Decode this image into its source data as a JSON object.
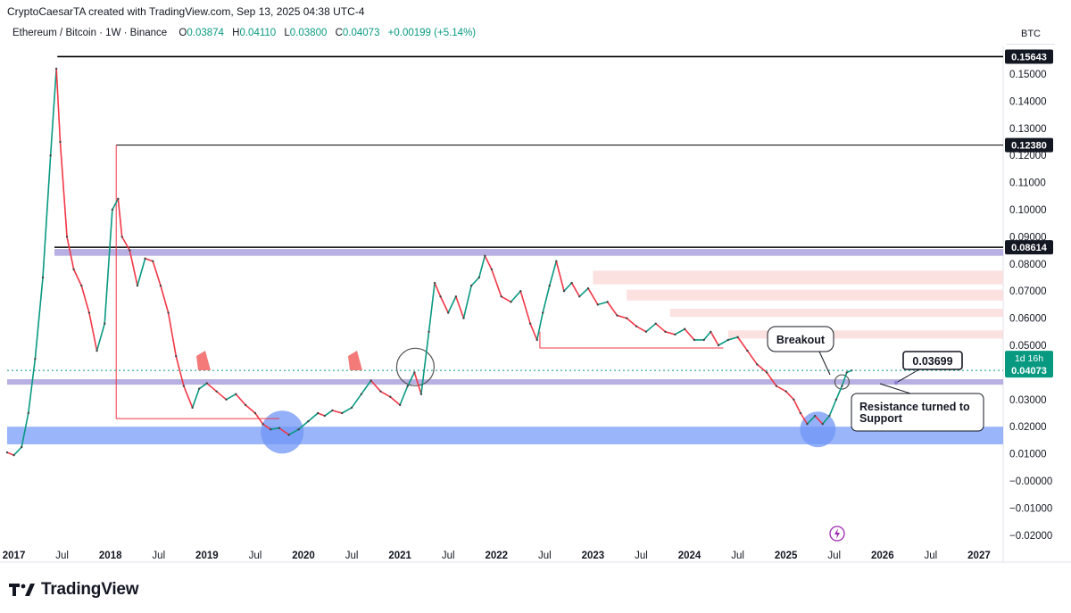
{
  "header": {
    "created_line": "CryptoCaesarTA created with TradingView.com, Sep 13, 2025 04:38 UTC-4",
    "symbol": "Ethereum / Bitcoin · 1W · Binance",
    "open_key": "O",
    "open": "0.03874",
    "high_key": "H",
    "high": "0.04110",
    "low_key": "L",
    "low": "0.03800",
    "close_key": "C",
    "close": "0.04073",
    "change": "+0.00199 (+5.14%)"
  },
  "currency": "BTC",
  "colors": {
    "up": "#089981",
    "down": "#f23645",
    "purple_band": "#9a8fd6",
    "blue_band": "#6f96f6",
    "red_zone": "#fbd9d9",
    "text": "#131722"
  },
  "chart_data": {
    "type": "line",
    "ylim": [
      -0.025,
      0.17
    ],
    "y_ticks": [
      "0.15000",
      "0.14000",
      "0.13000",
      "0.12000",
      "0.11000",
      "0.10000",
      "0.09000",
      "0.08000",
      "0.07000",
      "0.06000",
      "0.05000",
      "0.03000",
      "0.02000",
      "0.01000",
      "−0.00000",
      "−0.01000",
      "−0.02000"
    ],
    "y_tick_values": [
      0.15,
      0.14,
      0.13,
      0.12,
      0.11,
      0.1,
      0.09,
      0.08,
      0.07,
      0.06,
      0.05,
      0.03,
      0.02,
      0.01,
      0.0,
      -0.01,
      -0.02
    ],
    "x_ticks": [
      {
        "label": "2017",
        "t": 2017.0,
        "year": true
      },
      {
        "label": "Jul",
        "t": 2017.5,
        "year": false
      },
      {
        "label": "2018",
        "t": 2018.0,
        "year": true
      },
      {
        "label": "Jul",
        "t": 2018.5,
        "year": false
      },
      {
        "label": "2019",
        "t": 2019.0,
        "year": true
      },
      {
        "label": "Jul",
        "t": 2019.5,
        "year": false
      },
      {
        "label": "2020",
        "t": 2020.0,
        "year": true
      },
      {
        "label": "Jul",
        "t": 2020.5,
        "year": false
      },
      {
        "label": "2021",
        "t": 2021.0,
        "year": true
      },
      {
        "label": "Jul",
        "t": 2021.5,
        "year": false
      },
      {
        "label": "2022",
        "t": 2022.0,
        "year": true
      },
      {
        "label": "Jul",
        "t": 2022.5,
        "year": false
      },
      {
        "label": "2023",
        "t": 2023.0,
        "year": true
      },
      {
        "label": "Jul",
        "t": 2023.5,
        "year": false
      },
      {
        "label": "2024",
        "t": 2024.0,
        "year": true
      },
      {
        "label": "Jul",
        "t": 2024.5,
        "year": false
      },
      {
        "label": "2025",
        "t": 2025.0,
        "year": true
      },
      {
        "label": "Jul",
        "t": 2025.5,
        "year": false
      },
      {
        "label": "2026",
        "t": 2026.0,
        "year": true
      },
      {
        "label": "Jul",
        "t": 2026.5,
        "year": false
      },
      {
        "label": "2027",
        "t": 2027.0,
        "year": true
      }
    ],
    "series": [
      {
        "name": "",
        "t": [
          2016.93,
          2017.0,
          2017.08,
          2017.15,
          2017.22,
          2017.3,
          2017.38,
          2017.44,
          2017.48,
          2017.55,
          2017.62,
          2017.7,
          2017.78,
          2017.86,
          2017.94,
          2018.02,
          2018.08,
          2018.12,
          2018.2,
          2018.28,
          2018.36,
          2018.44,
          2018.52,
          2018.6,
          2018.68,
          2018.76,
          2018.85,
          2018.92,
          2019.0,
          2019.1,
          2019.2,
          2019.3,
          2019.4,
          2019.5,
          2019.58,
          2019.66,
          2019.75,
          2019.85,
          2019.95,
          2020.05,
          2020.15,
          2020.22,
          2020.3,
          2020.4,
          2020.5,
          2020.6,
          2020.7,
          2020.8,
          2020.9,
          2021.0,
          2021.08,
          2021.15,
          2021.22,
          2021.3,
          2021.36,
          2021.42,
          2021.5,
          2021.58,
          2021.66,
          2021.74,
          2021.82,
          2021.88,
          2021.95,
          2022.05,
          2022.15,
          2022.25,
          2022.35,
          2022.42,
          2022.48,
          2022.55,
          2022.62,
          2022.7,
          2022.78,
          2022.86,
          2022.95,
          2023.05,
          2023.15,
          2023.25,
          2023.35,
          2023.45,
          2023.55,
          2023.65,
          2023.75,
          2023.85,
          2023.95,
          2024.05,
          2024.15,
          2024.22,
          2024.3,
          2024.4,
          2024.5,
          2024.6,
          2024.7,
          2024.8,
          2024.9,
          2025.0,
          2025.08,
          2025.15,
          2025.22,
          2025.3,
          2025.38,
          2025.45,
          2025.52,
          2025.58,
          2025.63,
          2025.68
        ],
        "values": [
          0.0105,
          0.0095,
          0.0125,
          0.025,
          0.045,
          0.075,
          0.12,
          0.152,
          0.125,
          0.09,
          0.078,
          0.072,
          0.062,
          0.048,
          0.058,
          0.1,
          0.104,
          0.09,
          0.085,
          0.072,
          0.082,
          0.081,
          0.072,
          0.062,
          0.046,
          0.035,
          0.027,
          0.034,
          0.036,
          0.033,
          0.03,
          0.032,
          0.028,
          0.025,
          0.021,
          0.019,
          0.0195,
          0.017,
          0.019,
          0.022,
          0.025,
          0.024,
          0.026,
          0.025,
          0.027,
          0.032,
          0.037,
          0.033,
          0.031,
          0.028,
          0.035,
          0.04,
          0.032,
          0.055,
          0.073,
          0.068,
          0.062,
          0.068,
          0.06,
          0.072,
          0.075,
          0.083,
          0.078,
          0.068,
          0.066,
          0.07,
          0.058,
          0.052,
          0.062,
          0.072,
          0.081,
          0.07,
          0.073,
          0.068,
          0.071,
          0.065,
          0.066,
          0.061,
          0.06,
          0.057,
          0.055,
          0.058,
          0.055,
          0.054,
          0.056,
          0.052,
          0.052,
          0.055,
          0.05,
          0.052,
          0.053,
          0.048,
          0.043,
          0.04,
          0.035,
          0.033,
          0.03,
          0.025,
          0.021,
          0.024,
          0.021,
          0.024,
          0.03,
          0.035,
          0.04,
          0.04073
        ]
      }
    ],
    "levels": [
      {
        "value": 0.15643,
        "label": "0.15643",
        "from_t": 2017.45
      },
      {
        "value": 0.1238,
        "label": "0.12380",
        "from_t": 2018.06
      },
      {
        "value": 0.08614,
        "label": "0.08614",
        "from_t": 2017.42
      }
    ],
    "zones": [
      {
        "name": "purple-top",
        "y0": 0.083,
        "y1": 0.0855,
        "from_t": 2017.42
      },
      {
        "name": "purple-mid",
        "y0": 0.0355,
        "y1": 0.0375,
        "from_t": 2016.93
      },
      {
        "name": "blue-support",
        "y0": 0.0135,
        "y1": 0.02,
        "from_t": 2016.93
      }
    ],
    "red_zones": [
      {
        "y0": 0.0725,
        "y1": 0.0775,
        "from_t": 2023.0
      },
      {
        "y0": 0.0665,
        "y1": 0.0705,
        "from_t": 2023.35
      },
      {
        "y0": 0.0605,
        "y1": 0.0635,
        "from_t": 2023.8
      },
      {
        "y0": 0.0525,
        "y1": 0.0555,
        "from_t": 2024.4
      }
    ],
    "current_price": {
      "value": 0.04073,
      "label": "0.04073",
      "timer": "1d 16h"
    },
    "annotations": {
      "breakout": "Breakout",
      "target_value": "0.03699",
      "support": [
        "Resistance turned to",
        "Support"
      ]
    }
  },
  "brand": {
    "name": "TradingView"
  }
}
